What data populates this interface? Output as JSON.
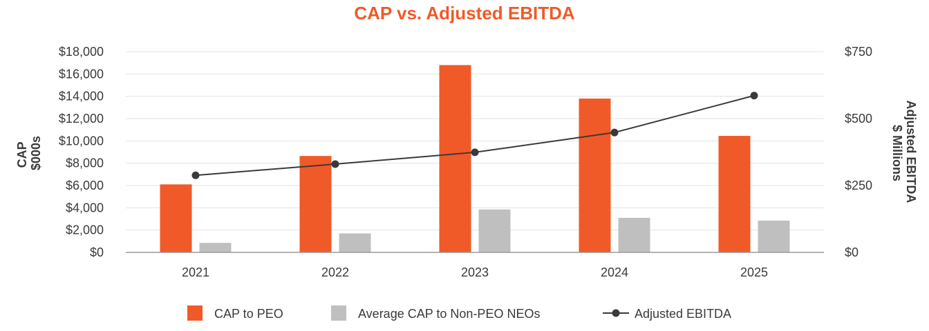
{
  "chart_data": {
    "type": "bar",
    "title": "CAP vs. Adjusted EBITDA",
    "categories": [
      "2021",
      "2022",
      "2023",
      "2024",
      "2025"
    ],
    "y_left": {
      "label_lines": [
        "CAP",
        "$000s"
      ],
      "range": [
        0,
        18000
      ],
      "ticks": [
        0,
        2000,
        4000,
        6000,
        8000,
        10000,
        12000,
        14000,
        16000,
        18000
      ],
      "tick_labels": [
        "$0",
        "$2,000",
        "$4,000",
        "$6,000",
        "$8,000",
        "$10,000",
        "$12,000",
        "$14,000",
        "$16,000",
        "$18,000"
      ]
    },
    "y_right": {
      "label_lines": [
        "Adjusted EBITDA",
        "$ Millions"
      ],
      "range": [
        0,
        750
      ],
      "ticks": [
        0,
        250,
        500,
        750
      ],
      "tick_labels": [
        "$0",
        "$250",
        "$500",
        "$750"
      ]
    },
    "series": [
      {
        "name": "CAP to PEO",
        "type": "bar",
        "axis": "left",
        "color": "#f05a28",
        "values": [
          6100,
          8650,
          16800,
          13800,
          10450
        ]
      },
      {
        "name": "Average CAP to Non-PEO NEOs",
        "type": "bar",
        "axis": "left",
        "color": "#bfbfbf",
        "values": [
          850,
          1700,
          3850,
          3100,
          2850
        ]
      },
      {
        "name": "Adjusted EBITDA",
        "type": "line",
        "axis": "right",
        "color": "#3a3a3a",
        "values": [
          288,
          330,
          374,
          448,
          586
        ]
      }
    ],
    "legend_position": "bottom",
    "grid": true
  }
}
